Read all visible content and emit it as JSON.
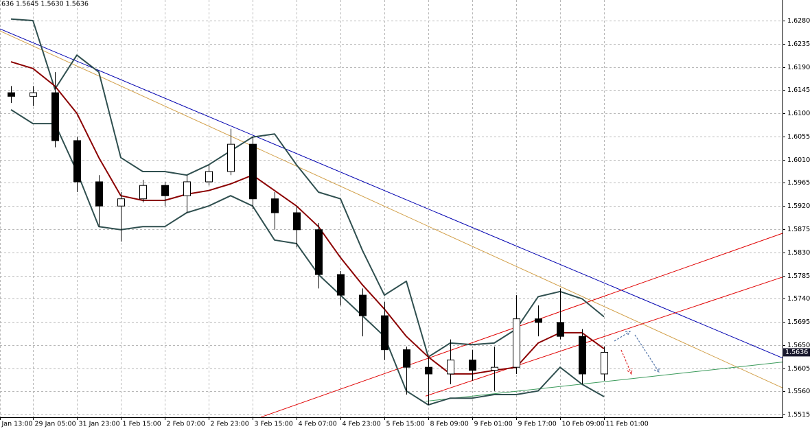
{
  "chart_data": {
    "type": "candlestick",
    "header": "636 1.5645 1.5630 1.5636",
    "x": [
      0,
      1,
      2,
      3,
      4,
      5,
      6,
      7,
      8,
      9,
      10,
      11,
      12,
      13,
      14,
      15,
      16,
      17,
      18,
      19,
      20,
      21,
      22,
      23,
      24,
      25,
      26,
      27
    ],
    "open": [
      1.614,
      1.6133,
      1.614,
      1.6047,
      1.5967,
      1.592,
      1.5934,
      1.596,
      1.594,
      1.5967,
      1.5987,
      1.604,
      1.5934,
      1.5907,
      1.5874,
      1.5787,
      1.5747,
      1.5707,
      1.5641,
      1.5607,
      1.5594,
      1.5621,
      1.5601,
      1.5607,
      1.5701,
      1.5694,
      1.5667,
      1.5594
    ],
    "high": [
      1.6153,
      1.6153,
      1.618,
      1.6054,
      1.598,
      1.5947,
      1.5971,
      1.5967,
      1.598,
      1.6,
      1.607,
      1.6054,
      1.5947,
      1.592,
      1.5887,
      1.5794,
      1.576,
      1.5734,
      1.5647,
      1.5627,
      1.5661,
      1.5641,
      1.5647,
      1.5747,
      1.5727,
      1.576,
      1.5681,
      1.5647
    ],
    "low": [
      1.612,
      1.6114,
      1.6034,
      1.5947,
      1.588,
      1.5851,
      1.5927,
      1.592,
      1.5907,
      1.596,
      1.598,
      1.5914,
      1.5874,
      1.584,
      1.576,
      1.5727,
      1.5667,
      1.5621,
      1.5554,
      1.5534,
      1.5574,
      1.5581,
      1.5561,
      1.5594,
      1.5667,
      1.5661,
      1.5574,
      1.5581
    ],
    "close": [
      1.6133,
      1.614,
      1.6047,
      1.5967,
      1.592,
      1.5934,
      1.596,
      1.594,
      1.5967,
      1.5987,
      1.604,
      1.5934,
      1.5907,
      1.5874,
      1.5787,
      1.5747,
      1.5707,
      1.5641,
      1.5607,
      1.5594,
      1.5621,
      1.5601,
      1.5607,
      1.5701,
      1.5694,
      1.5667,
      1.5594,
      1.5636
    ],
    "ma": {
      "color": "#8b0000",
      "values": [
        1.62,
        1.6187,
        1.6153,
        1.61,
        1.6014,
        1.594,
        1.5931,
        1.5931,
        1.5943,
        1.595,
        1.5963,
        1.598,
        1.595,
        1.592,
        1.588,
        1.582,
        1.5767,
        1.572,
        1.5667,
        1.5627,
        1.5594,
        1.5594,
        1.5601,
        1.5607,
        1.5654,
        1.5674,
        1.5674,
        1.5643
      ]
    },
    "upper_band": {
      "color": "#2f4f4f",
      "values": [
        1.6283,
        1.628,
        1.6147,
        1.6213,
        1.618,
        1.6014,
        1.5987,
        1.5987,
        1.598,
        1.6,
        1.6027,
        1.6054,
        1.606,
        1.6,
        1.5947,
        1.5934,
        1.5834,
        1.5747,
        1.5774,
        1.5627,
        1.5654,
        1.5651,
        1.5654,
        1.5681,
        1.5744,
        1.5754,
        1.574,
        1.5705
      ]
    },
    "lower_band": {
      "color": "#2f4f4f",
      "values": [
        1.6107,
        1.608,
        1.608,
        1.5987,
        1.588,
        1.5874,
        1.588,
        1.588,
        1.5907,
        1.592,
        1.594,
        1.592,
        1.5854,
        1.5847,
        1.5787,
        1.5747,
        1.5707,
        1.5667,
        1.5561,
        1.5534,
        1.5547,
        1.5547,
        1.5554,
        1.5554,
        1.5561,
        1.5607,
        1.5574,
        1.555
      ]
    },
    "trendlines": [
      {
        "color": "#0000b0",
        "x": [
          -0.5,
          35.125
        ],
        "y": [
          1.6264,
          1.5625
        ]
      },
      {
        "color": "#d2a04a",
        "x": [
          -0.5,
          35.125
        ],
        "y": [
          1.626,
          1.5567
        ]
      },
      {
        "color": "#e00000",
        "x": [
          11.375,
          35.125
        ],
        "y": [
          1.551,
          1.5867
        ]
      },
      {
        "color": "#e00000",
        "x": [
          18.875,
          35.125
        ],
        "y": [
          1.5551,
          1.5782
        ]
      },
      {
        "color": "#3a9a5a",
        "x": [
          18.875,
          35.125
        ],
        "y": [
          1.5541,
          1.5617
        ]
      }
    ],
    "last_price": 1.5636,
    "xlim": [
      -0.5,
      35.125
    ],
    "ylim": [
      1.551,
      1.632
    ],
    "xticks": [
      {
        "value": -0.5,
        "label": "Jan 13:00"
      },
      {
        "value": 1,
        "label": "29 Jan 05:00"
      },
      {
        "value": 3,
        "label": "31 Jan 23:00"
      },
      {
        "value": 5,
        "label": "1 Feb 15:00"
      },
      {
        "value": 7,
        "label": "2 Feb 07:00"
      },
      {
        "value": 9,
        "label": "2 Feb 23:00"
      },
      {
        "value": 11,
        "label": "3 Feb 15:00"
      },
      {
        "value": 13,
        "label": "4 Feb 07:00"
      },
      {
        "value": 15,
        "label": "4 Feb 23:00"
      },
      {
        "value": 17,
        "label": "5 Feb 15:00"
      },
      {
        "value": 19,
        "label": "8 Feb 09:00"
      },
      {
        "value": 21,
        "label": "9 Feb 01:00"
      },
      {
        "value": 23,
        "label": "9 Feb 17:00"
      },
      {
        "value": 25,
        "label": "10 Feb 09:00"
      },
      {
        "value": 27,
        "label": "11 Feb 01:00"
      }
    ],
    "yticks": [
      {
        "value": 1.628,
        "label": "1.6280"
      },
      1.6235,
      {
        "value": 1.619,
        "label": "1.6190"
      },
      1.6145,
      {
        "value": 1.61,
        "label": "1.6100"
      },
      1.6055,
      {
        "value": 1.601,
        "label": "1.6010"
      },
      1.5965,
      {
        "value": 1.592,
        "label": "1.5920"
      },
      1.5875,
      {
        "value": 1.583,
        "label": "1.5830"
      },
      1.5785,
      {
        "value": 1.574,
        "label": "1.5740"
      },
      1.5695,
      {
        "value": 1.565,
        "label": "1.5650"
      },
      1.5605,
      {
        "value": 1.556,
        "label": "1.5560"
      },
      1.5515
    ],
    "grid": true
  }
}
